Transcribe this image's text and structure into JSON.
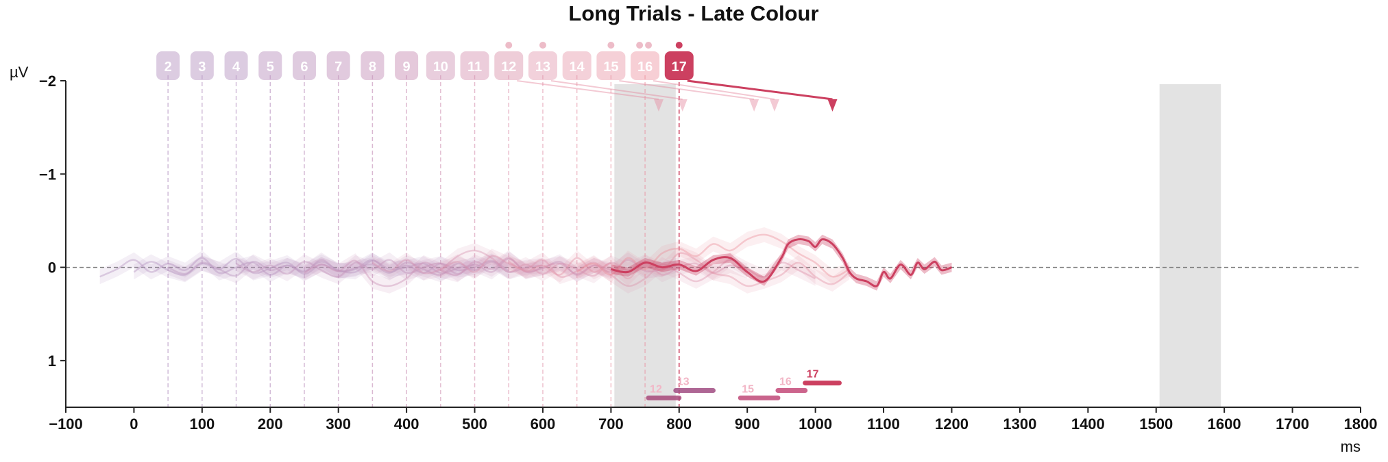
{
  "chart_data": {
    "type": "line",
    "title": "Long Trials - Late Colour",
    "xlabel": "ms",
    "ylabel": "µV",
    "xlim": [
      -100,
      1800
    ],
    "ylim": [
      1.5,
      -2.0
    ],
    "y_inverted": true,
    "x_ticks": [
      -100,
      0,
      100,
      200,
      300,
      400,
      500,
      600,
      700,
      800,
      900,
      1000,
      1100,
      1200,
      1300,
      1400,
      1500,
      1600,
      1700,
      1800
    ],
    "x_tick_labels": [
      "−100",
      "0",
      "100",
      "200",
      "300",
      "400",
      "500",
      "600",
      "700",
      "800",
      "900",
      "1000",
      "1100",
      "1200",
      "1300",
      "1400",
      "1500",
      "1600",
      "1700",
      "1800"
    ],
    "y_ticks": [
      -2,
      -1,
      0,
      1
    ],
    "y_tick_labels": [
      "−2",
      "−1",
      "0",
      "1"
    ],
    "zero_line": true,
    "shaded_regions": [
      {
        "x0": 705,
        "x1": 795
      },
      {
        "x0": 1505,
        "x1": 1595
      }
    ],
    "markers": [
      {
        "label": "2",
        "x": 50,
        "color": "#b99ac4",
        "opacity": 0.55
      },
      {
        "label": "3",
        "x": 100,
        "color": "#b99ac4",
        "opacity": 0.55
      },
      {
        "label": "4",
        "x": 150,
        "color": "#b99ac4",
        "opacity": 0.55
      },
      {
        "label": "5",
        "x": 200,
        "color": "#bd98c2",
        "opacity": 0.55
      },
      {
        "label": "6",
        "x": 250,
        "color": "#c097c0",
        "opacity": 0.55
      },
      {
        "label": "7",
        "x": 300,
        "color": "#c396bd",
        "opacity": 0.55
      },
      {
        "label": "8",
        "x": 350,
        "color": "#c795bb",
        "opacity": 0.55
      },
      {
        "label": "9",
        "x": 400,
        "color": "#cb94b8",
        "opacity": 0.55
      },
      {
        "label": "10",
        "x": 450,
        "color": "#d093b4",
        "opacity": 0.5
      },
      {
        "label": "11",
        "x": 500,
        "color": "#d692b0",
        "opacity": 0.5
      },
      {
        "label": "12",
        "x": 550,
        "color": "#db91ab",
        "opacity": 0.5
      },
      {
        "label": "13",
        "x": 600,
        "color": "#e090a7",
        "opacity": 0.45
      },
      {
        "label": "14",
        "x": 650,
        "color": "#e48fa3",
        "opacity": 0.45
      },
      {
        "label": "15",
        "x": 700,
        "color": "#e88d9e",
        "opacity": 0.45
      },
      {
        "label": "16",
        "x": 750,
        "color": "#ec8b99",
        "opacity": 0.45
      },
      {
        "label": "17",
        "x": 800,
        "color": "#cc4060",
        "opacity": 1.0
      }
    ],
    "dots_above_markers": [
      {
        "x": 550,
        "opacity": 0.35
      },
      {
        "x": 600,
        "opacity": 0.35
      },
      {
        "x": 700,
        "opacity": 0.35
      },
      {
        "x": 742,
        "opacity": 0.35
      },
      {
        "x": 755,
        "opacity": 0.35
      },
      {
        "x": 800,
        "opacity": 1.0
      }
    ],
    "arrows": [
      {
        "from_marker": "12",
        "to_x": 770,
        "opacity": 0.3
      },
      {
        "from_marker": "13",
        "to_x": 805,
        "opacity": 0.3
      },
      {
        "from_marker": "15",
        "to_x": 910,
        "opacity": 0.3
      },
      {
        "from_marker": "16",
        "to_x": 940,
        "opacity": 0.3
      },
      {
        "from_marker": "17",
        "to_x": 1025,
        "opacity": 1.0
      }
    ],
    "latency_bars": [
      {
        "label": "12",
        "x0": 755,
        "x1": 800,
        "y": 1.4,
        "color": "#a8487a",
        "opacity": 0.35
      },
      {
        "label": "13",
        "x0": 795,
        "x1": 850,
        "y": 1.32,
        "color": "#a04c82",
        "opacity": 0.35
      },
      {
        "label": "15",
        "x0": 890,
        "x1": 945,
        "y": 1.4,
        "color": "#c04a78",
        "opacity": 0.35
      },
      {
        "label": "16",
        "x0": 945,
        "x1": 985,
        "y": 1.32,
        "color": "#c44a78",
        "opacity": 0.35
      },
      {
        "label": "17",
        "x0": 985,
        "x1": 1035,
        "y": 1.24,
        "color": "#cc4060",
        "opacity": 1.0
      }
    ],
    "series": [
      {
        "name": "2",
        "x": [
          -50,
          -25,
          0,
          25,
          50,
          75,
          100,
          125,
          150,
          175,
          200,
          225,
          250,
          275,
          300,
          325,
          350,
          375,
          400,
          425,
          450,
          475,
          500
        ],
        "values": [
          0.1,
          0.02,
          -0.08,
          0.05,
          -0.04,
          0.03,
          -0.1,
          0.06,
          0.0,
          -0.05,
          0.08,
          -0.02,
          0.04,
          -0.06,
          0.03,
          0.05,
          -0.07,
          0.02,
          0.0,
          -0.04,
          0.06,
          0.01,
          -0.03
        ],
        "color": "#b99ac4",
        "opacity": 0.45
      },
      {
        "name": "3",
        "x": [
          0,
          25,
          50,
          75,
          100,
          125,
          150,
          175,
          200,
          225,
          250,
          275,
          300,
          325,
          350,
          375,
          400,
          425,
          450,
          475,
          500,
          525,
          550
        ],
        "values": [
          0.05,
          -0.06,
          0.03,
          0.08,
          -0.04,
          0.02,
          -0.09,
          0.06,
          0.01,
          -0.05,
          0.07,
          -0.03,
          0.04,
          0.02,
          -0.08,
          0.05,
          -0.02,
          0.06,
          -0.04,
          0.03,
          0.0,
          -0.07,
          0.04
        ],
        "color": "#b99ac4",
        "opacity": 0.45
      },
      {
        "name": "4",
        "x": [
          50,
          75,
          100,
          125,
          150,
          175,
          200,
          225,
          250,
          275,
          300,
          325,
          350,
          375,
          400,
          425,
          450,
          475,
          500,
          525,
          550,
          575,
          600
        ],
        "values": [
          0.0,
          0.07,
          -0.05,
          0.02,
          0.09,
          -0.06,
          0.03,
          -0.02,
          0.05,
          -0.08,
          0.04,
          0.01,
          -0.03,
          0.06,
          -0.05,
          0.02,
          0.08,
          -0.04,
          0.03,
          -0.06,
          0.05,
          0.0,
          -0.02
        ],
        "color": "#bd98c2",
        "opacity": 0.45
      },
      {
        "name": "6",
        "x": [
          150,
          175,
          200,
          225,
          250,
          275,
          300,
          325,
          350,
          375,
          400,
          425,
          450,
          475,
          500,
          525,
          550,
          575,
          600,
          625,
          650,
          675,
          700
        ],
        "values": [
          -0.04,
          0.05,
          -0.02,
          0.07,
          -0.06,
          0.03,
          0.1,
          -0.05,
          0.02,
          -0.08,
          0.06,
          0.0,
          -0.04,
          0.07,
          -0.03,
          0.05,
          -0.09,
          0.04,
          0.01,
          -0.06,
          0.08,
          -0.02,
          0.03
        ],
        "color": "#c396bd",
        "opacity": 0.45
      },
      {
        "name": "8",
        "x": [
          250,
          275,
          300,
          325,
          350,
          375,
          400,
          425,
          450,
          475,
          500,
          525,
          550,
          575,
          600,
          625,
          650,
          675,
          700,
          725,
          750,
          775,
          800
        ],
        "values": [
          0.06,
          -0.03,
          0.04,
          -0.07,
          0.15,
          0.2,
          0.12,
          -0.05,
          0.03,
          0.08,
          -0.06,
          0.02,
          -0.1,
          0.05,
          0.0,
          -0.04,
          0.07,
          -0.02,
          0.05,
          -0.08,
          0.04,
          0.02,
          -0.03
        ],
        "color": "#cb94b8",
        "opacity": 0.45
      },
      {
        "name": "10",
        "x": [
          350,
          375,
          400,
          425,
          450,
          475,
          500,
          525,
          550,
          575,
          600,
          625,
          650,
          675,
          700,
          725,
          750,
          775,
          800,
          825,
          850,
          875,
          900
        ],
        "values": [
          -0.05,
          0.04,
          -0.08,
          0.06,
          0.02,
          -0.12,
          -0.18,
          -0.1,
          0.05,
          -0.03,
          0.07,
          -0.04,
          0.02,
          0.09,
          -0.05,
          0.03,
          -0.06,
          0.08,
          0.0,
          -0.04,
          0.06,
          -0.02,
          0.04
        ],
        "color": "#d692b0",
        "opacity": 0.4
      },
      {
        "name": "12",
        "x": [
          450,
          475,
          500,
          525,
          550,
          575,
          600,
          625,
          650,
          675,
          700,
          725,
          750,
          775,
          800,
          825,
          850,
          875,
          900,
          925,
          950,
          975,
          1000
        ],
        "values": [
          0.03,
          -0.06,
          0.05,
          -0.12,
          -0.04,
          0.02,
          -0.08,
          0.1,
          0.04,
          -0.05,
          0.08,
          0.2,
          0.12,
          -0.03,
          0.06,
          0.15,
          0.05,
          -0.08,
          0.02,
          0.1,
          -0.05,
          0.03,
          0.12
        ],
        "color": "#db91ab",
        "opacity": 0.4
      },
      {
        "name": "14",
        "x": [
          550,
          575,
          600,
          625,
          650,
          675,
          700,
          725,
          750,
          775,
          800,
          825,
          850,
          875,
          900,
          925,
          950,
          975,
          1000,
          1025,
          1050
        ],
        "values": [
          -0.06,
          0.04,
          -0.02,
          0.08,
          -0.1,
          0.05,
          -0.04,
          0.12,
          -0.06,
          0.03,
          -0.15,
          -0.08,
          0.06,
          0.1,
          0.2,
          0.15,
          0.08,
          -0.05,
          0.1,
          0.18,
          0.05
        ],
        "color": "#e48fa3",
        "opacity": 0.4
      },
      {
        "name": "16",
        "x": [
          650,
          675,
          700,
          725,
          750,
          775,
          800,
          825,
          850,
          875,
          900,
          925,
          950,
          975,
          1000,
          1025,
          1050
        ],
        "values": [
          0.05,
          -0.04,
          0.08,
          -0.1,
          0.02,
          -0.15,
          -0.2,
          -0.12,
          -0.25,
          -0.18,
          -0.3,
          -0.35,
          -0.28,
          -0.15,
          -0.05,
          0.1,
          0.02
        ],
        "color": "#ec8b99",
        "opacity": 0.4
      },
      {
        "name": "17",
        "x": [
          700,
          725,
          750,
          775,
          800,
          825,
          850,
          875,
          900,
          925,
          950,
          960,
          975,
          990,
          1000,
          1010,
          1025,
          1040,
          1050,
          1060,
          1075,
          1090,
          1100,
          1110,
          1125,
          1140,
          1150,
          1160,
          1175,
          1185,
          1200
        ],
        "values": [
          0.02,
          0.05,
          -0.05,
          0.0,
          -0.03,
          0.04,
          -0.08,
          -0.1,
          0.05,
          0.15,
          -0.1,
          -0.25,
          -0.3,
          -0.28,
          -0.22,
          -0.3,
          -0.25,
          -0.1,
          0.05,
          0.12,
          0.15,
          0.2,
          0.05,
          0.12,
          -0.03,
          0.08,
          -0.05,
          0.02,
          -0.06,
          0.03,
          0.0
        ],
        "color": "#cc4060",
        "opacity": 1.0,
        "band": 0.05
      }
    ]
  }
}
